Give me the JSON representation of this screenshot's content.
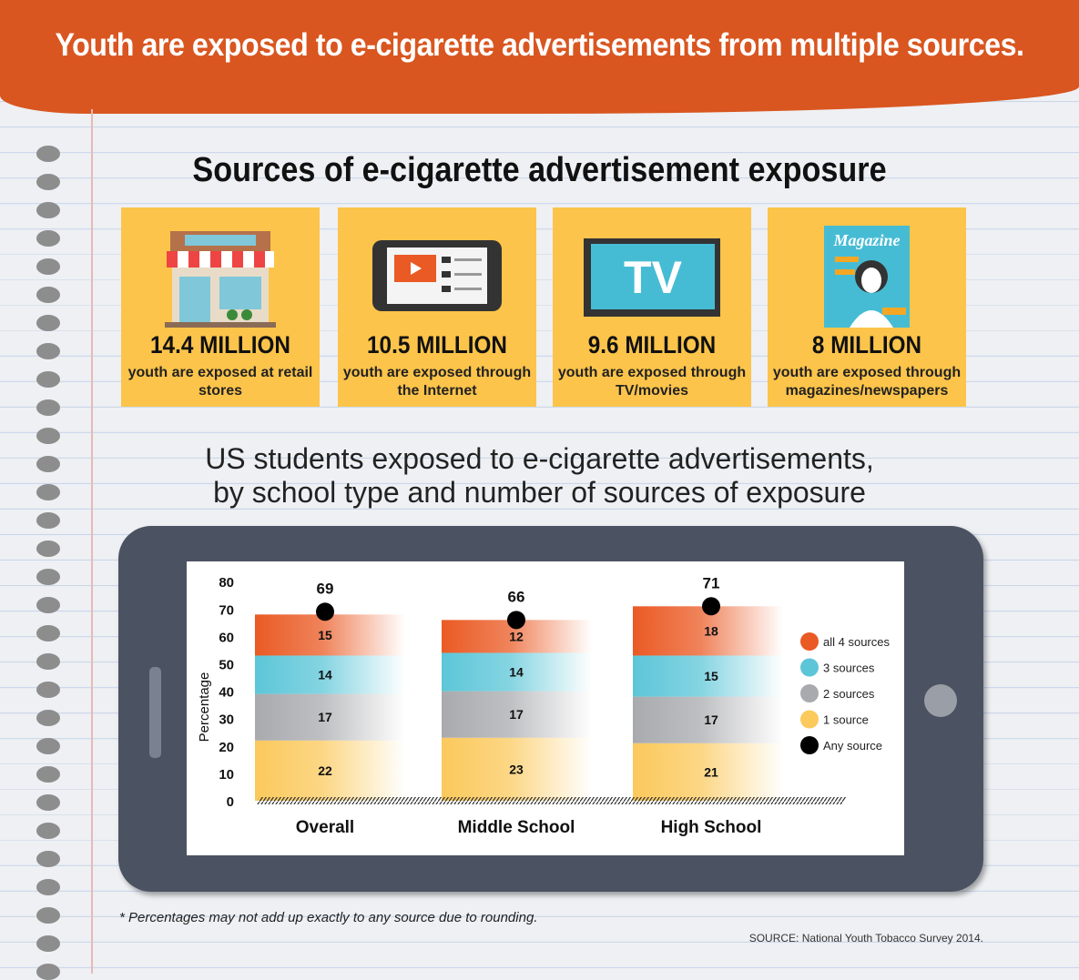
{
  "header": {
    "title": "Youth are exposed to e-cigarette advertisements from multiple sources."
  },
  "section_title": "Sources of e-cigarette advertisement exposure",
  "cards": [
    {
      "icon": "store-icon",
      "figure": "14.4 MILLION",
      "text": "youth are exposed at retail stores"
    },
    {
      "icon": "tablet-video-icon",
      "figure": "10.5 MILLION",
      "text": "youth are exposed through the Internet"
    },
    {
      "icon": "tv-icon",
      "figure": "9.6 MILLION",
      "text": "youth are exposed through TV/movies",
      "tv_label": "TV"
    },
    {
      "icon": "magazine-icon",
      "figure": "8 MILLION",
      "text": "youth are exposed through magazines/newspapers",
      "magazine_label": "Magazine"
    }
  ],
  "chart_title_line1": "US students exposed to e-cigarette advertisements,",
  "chart_title_line2": "by school type and number of sources of exposure",
  "chart_data": {
    "type": "bar",
    "stacked": true,
    "categories": [
      "Overall",
      "Middle School",
      "High School"
    ],
    "ylabel": "Percentage",
    "ylim": [
      0,
      80
    ],
    "yticks": [
      0,
      10,
      20,
      30,
      40,
      50,
      60,
      70,
      80
    ],
    "series": [
      {
        "name": "1 source",
        "values": [
          22,
          23,
          21
        ],
        "color": "#fbc95c"
      },
      {
        "name": "2 sources",
        "values": [
          17,
          17,
          17
        ],
        "color": "#a9aaae"
      },
      {
        "name": "3 sources",
        "values": [
          14,
          14,
          15
        ],
        "color": "#5cc6d8"
      },
      {
        "name": "all 4 sources",
        "values": [
          15,
          12,
          18
        ],
        "color": "#ea5a24"
      }
    ],
    "markers": {
      "name": "Any source",
      "values": [
        69,
        66,
        71
      ],
      "color": "#000000"
    },
    "legend_order": [
      "all 4 sources",
      "3 sources",
      "2 sources",
      "1 source",
      "Any source"
    ],
    "legend_position": "right",
    "grid": false
  },
  "footnote": "* Percentages may not add up exactly to any source due to rounding.",
  "source": "SOURCE: National Youth Tobacco Survey 2014."
}
